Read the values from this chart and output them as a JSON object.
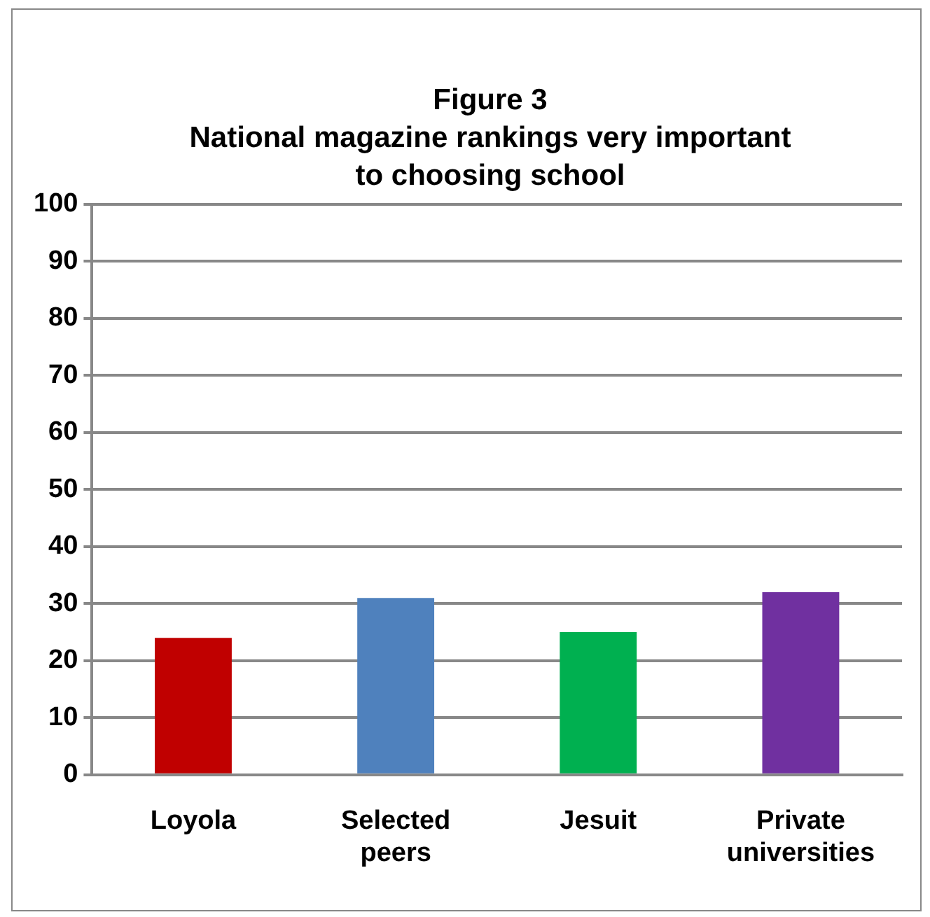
{
  "chart_data": {
    "type": "bar",
    "title": "Figure 3",
    "subtitle": "National magazine rankings very important to choosing school",
    "categories": [
      "Loyola",
      "Selected peers",
      "Jesuit",
      "Private universities"
    ],
    "values": [
      24,
      31,
      25,
      32
    ],
    "colors": [
      "#c00000",
      "#4f81bd",
      "#00b050",
      "#7030a0"
    ],
    "ylim": [
      0,
      100
    ],
    "yticks": [
      0,
      10,
      20,
      30,
      40,
      50,
      60,
      70,
      80,
      90,
      100
    ],
    "grid": "y",
    "legend": false
  }
}
